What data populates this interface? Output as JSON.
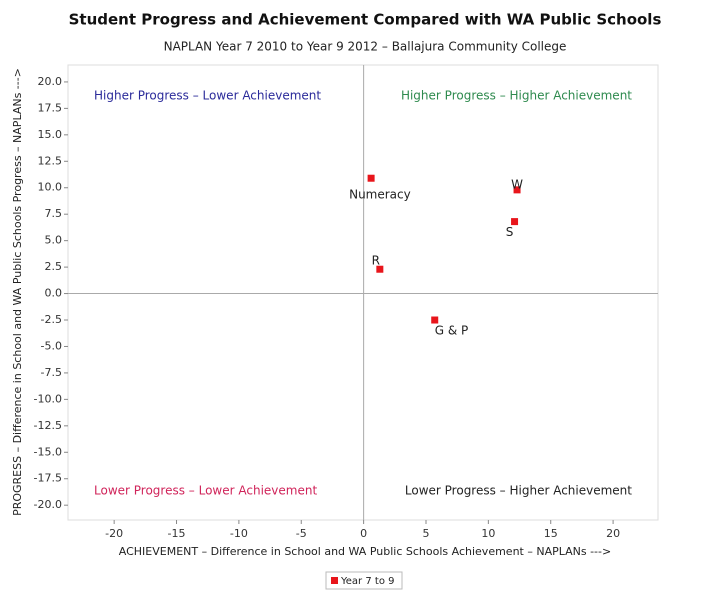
{
  "chart_data": {
    "type": "scatter",
    "title": "Student Progress and Achievement Compared with WA Public Schools",
    "subtitle": "NAPLAN Year 7 2010 to Year 9 2012 – Ballajura Community College",
    "xlabel": "ACHIEVEMENT – Difference in School and WA Public Schools Achievement – NAPLANs --->",
    "ylabel": "PROGRESS – Difference in School and WA Public Schools Progress – NAPLANs --->",
    "xlim": [
      -23.7,
      23.6
    ],
    "ylim": [
      -21.4,
      21.6
    ],
    "xticks": [
      -20,
      -15,
      -10,
      -5,
      0,
      5,
      10,
      15,
      20
    ],
    "yticks": [
      {
        "value": 20,
        "label": "20.0"
      },
      {
        "value": 17.5,
        "label": "17.5"
      },
      {
        "value": 15,
        "label": "15.0"
      },
      {
        "value": 12.5,
        "label": "12.5"
      },
      {
        "value": 10,
        "label": "10.0"
      },
      {
        "value": 7.5,
        "label": "7.5"
      },
      {
        "value": 5,
        "label": "5.0"
      },
      {
        "value": 2.5,
        "label": "2.5"
      },
      {
        "value": 0,
        "label": "0.0"
      },
      {
        "value": -2.5,
        "label": "-2.5"
      },
      {
        "value": -5,
        "label": "-5.0"
      },
      {
        "value": -7.5,
        "label": "-7.5"
      },
      {
        "value": -10,
        "label": "-10.0"
      },
      {
        "value": -12.5,
        "label": "-12.5"
      },
      {
        "value": -15,
        "label": "-15.0"
      },
      {
        "value": -17.5,
        "label": "-17.5"
      },
      {
        "value": -20,
        "label": "-20.0"
      }
    ],
    "legend": "bottom",
    "series": [
      {
        "name": "Year 7 to 9",
        "color": "#e8151b",
        "x": [
          0.6,
          12.3,
          12.1,
          1.3,
          5.7
        ],
        "values": [
          10.9,
          9.8,
          6.8,
          2.3,
          -2.5
        ],
        "labels": [
          "Numeracy",
          "W",
          "S",
          "R",
          "G & P"
        ]
      }
    ],
    "annotations": [
      {
        "text": "Higher Progress – Lower Achievement",
        "color": "#2a2a9a",
        "corner": "top-left"
      },
      {
        "text": "Higher Progress – Higher Achievement",
        "color": "#2e8a4e",
        "corner": "top-right"
      },
      {
        "text": "Lower Progress – Lower Achievement",
        "color": "#d0245a",
        "corner": "bottom-left"
      },
      {
        "text": "Lower Progress – Higher Achievement",
        "color": "#222222",
        "corner": "bottom-right"
      }
    ]
  }
}
